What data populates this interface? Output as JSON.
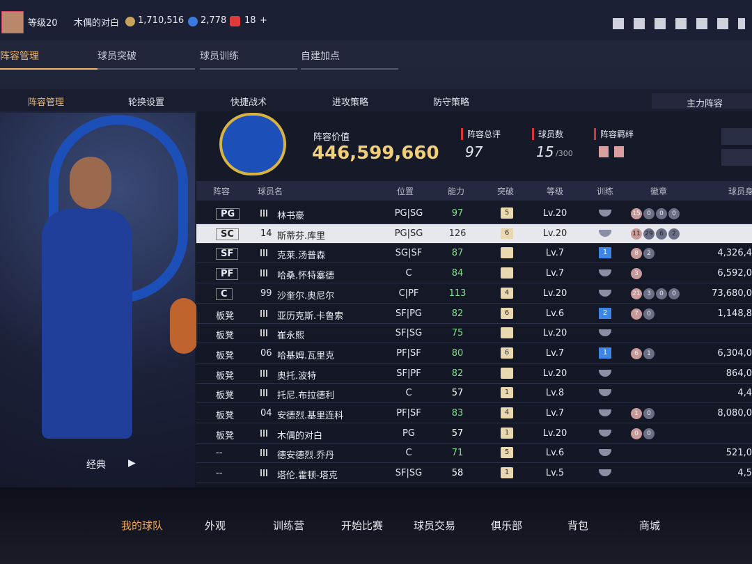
{
  "header": {
    "level": "等级20",
    "name": "木偶的对白",
    "coins": "1,710,516",
    "stars": "2,778",
    "tickets": "18",
    "add": "+"
  },
  "tabs": [
    "阵容管理",
    "球员突破",
    "球员训练",
    "自建加点"
  ],
  "subtabs": [
    "阵容管理",
    "轮换设置",
    "快捷战术",
    "进攻策略",
    "防守策略"
  ],
  "lineup_label": "主力阵容",
  "summary": {
    "value_label": "阵容价值",
    "value": "446,599,660",
    "rating_label": "阵容总评",
    "rating": "97",
    "count_label": "球员数",
    "count": "15",
    "count_max": "/300",
    "bond_label": "阵容羁绊"
  },
  "table": {
    "headers": [
      "阵容",
      "球员名",
      "位置",
      "能力",
      "突破",
      "等级",
      "训练",
      "徽章",
      "球员身"
    ],
    "rows": [
      {
        "slot": "PG",
        "num": null,
        "name": "林书豪",
        "pos": "PG|SG",
        "ability": "97",
        "ability_color": "#7fe08a",
        "brk": "5",
        "level": "Lv.20",
        "train": null,
        "badges": [
          "15",
          "0",
          "0",
          "0"
        ],
        "price": null
      },
      {
        "slot": "SC",
        "num": "14",
        "name": "斯蒂芬.库里",
        "pos": "PG|SG",
        "ability": "126",
        "ability_color": "#333333",
        "brk": "6",
        "level": "Lv.20",
        "train": null,
        "badges": [
          "11",
          "29",
          "6",
          "2"
        ],
        "price": null
      },
      {
        "slot": "SF",
        "num": null,
        "name": "克莱.汤普森",
        "pos": "SG|SF",
        "ability": "87",
        "ability_color": "#7fe08a",
        "brk": null,
        "level": "Lv.7",
        "train": "1",
        "badges": [
          "8",
          "2"
        ],
        "price": "4,326,4"
      },
      {
        "slot": "PF",
        "num": null,
        "name": "哈桑.怀特塞德",
        "pos": "C",
        "ability": "84",
        "ability_color": "#7fe08a",
        "brk": null,
        "level": "Lv.7",
        "train": null,
        "badges": [
          "3"
        ],
        "price": "6,592,0"
      },
      {
        "slot": "C",
        "num": "99",
        "name": "沙奎尔.奥尼尔",
        "pos": "C|PF",
        "ability": "113",
        "ability_color": "#7fe08a",
        "brk": "4",
        "level": "Lv.20",
        "train": null,
        "badges": [
          "21",
          "3",
          "0",
          "0"
        ],
        "price": "73,680,0"
      },
      {
        "slot": "板凳",
        "num": null,
        "name": "亚历克斯.卡鲁索",
        "pos": "SF|PG",
        "ability": "82",
        "ability_color": "#7fe08a",
        "brk": "6",
        "level": "Lv.6",
        "train": "2",
        "badges": [
          "7",
          "0"
        ],
        "price": "1,148,8"
      },
      {
        "slot": "板凳",
        "num": null,
        "name": "崔永熙",
        "pos": "SF|SG",
        "ability": "75",
        "ability_color": "#7fe08a",
        "brk": null,
        "level": "Lv.20",
        "train": null,
        "badges": [],
        "price": null
      },
      {
        "slot": "板凳",
        "num": "06",
        "name": "哈基姆.瓦里克",
        "pos": "PF|SF",
        "ability": "80",
        "ability_color": "#7fe08a",
        "brk": "6",
        "level": "Lv.7",
        "train": "1",
        "badges": [
          "6",
          "1"
        ],
        "price": "6,304,0"
      },
      {
        "slot": "板凳",
        "num": null,
        "name": "奥托.波特",
        "pos": "SF|PF",
        "ability": "82",
        "ability_color": "#7fe08a",
        "brk": null,
        "level": "Lv.20",
        "train": null,
        "badges": [],
        "price": "864,0"
      },
      {
        "slot": "板凳",
        "num": null,
        "name": "托尼.布拉德利",
        "pos": "C",
        "ability": "57",
        "ability_color": "#ffffff",
        "brk": "1",
        "level": "Lv.8",
        "train": null,
        "badges": [],
        "price": "4,4"
      },
      {
        "slot": "板凳",
        "num": "04",
        "name": "安德烈.基里连科",
        "pos": "PF|SF",
        "ability": "83",
        "ability_color": "#7fe08a",
        "brk": "4",
        "level": "Lv.7",
        "train": null,
        "badges": [
          "1",
          "0"
        ],
        "price": "8,080,0"
      },
      {
        "slot": "板凳",
        "num": null,
        "name": "木偶的对白",
        "pos": "PG",
        "ability": "57",
        "ability_color": "#ffffff",
        "brk": "1",
        "level": "Lv.20",
        "train": null,
        "badges": [
          "0",
          "0"
        ],
        "price": null
      },
      {
        "slot": "--",
        "num": null,
        "name": "德安德烈.乔丹",
        "pos": "C",
        "ability": "71",
        "ability_color": "#7fe08a",
        "brk": "5",
        "level": "Lv.6",
        "train": null,
        "badges": [],
        "price": "521,0"
      },
      {
        "slot": "--",
        "num": null,
        "name": "塔伦.霍顿-塔克",
        "pos": "SF|SG",
        "ability": "58",
        "ability_color": "#ffffff",
        "brk": "1",
        "level": "Lv.5",
        "train": null,
        "badges": [],
        "price": "4,5"
      }
    ]
  },
  "card_style": "经典",
  "nav": [
    "我的球队",
    "外观",
    "训练营",
    "开始比赛",
    "球员交易",
    "俱乐部",
    "背包",
    "商城"
  ]
}
